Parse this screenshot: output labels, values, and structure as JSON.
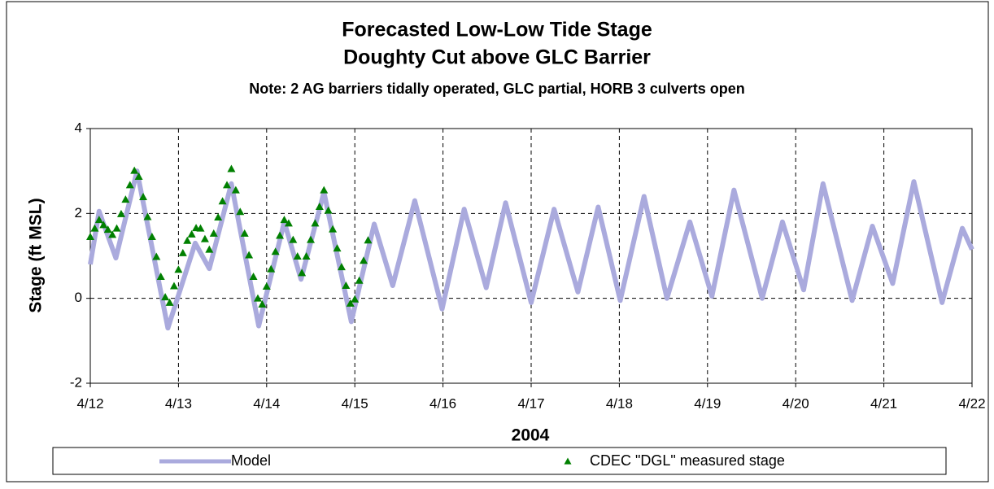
{
  "chart_data": {
    "type": "line",
    "title": "Forecasted Low-Low Tide Stage",
    "subtitle": "Doughty Cut above GLC Barrier",
    "note": "Note: 2 AG barriers tidally operated, GLC partial, HORB 3 culverts open",
    "x_label": "2004",
    "y_label": "Stage (ft MSL)",
    "xlim": [
      12,
      22
    ],
    "xticks": [
      {
        "value": 12,
        "label": "4/12"
      },
      {
        "value": 13,
        "label": "4/13"
      },
      {
        "value": 14,
        "label": "4/14"
      },
      {
        "value": 15,
        "label": "4/15"
      },
      {
        "value": 16,
        "label": "4/16"
      },
      {
        "value": 17,
        "label": "4/17"
      },
      {
        "value": 18,
        "label": "4/18"
      },
      {
        "value": 19,
        "label": "4/19"
      },
      {
        "value": 20,
        "label": "4/20"
      },
      {
        "value": 21,
        "label": "4/21"
      },
      {
        "value": 22,
        "label": "4/22"
      }
    ],
    "ylim": [
      -2,
      4
    ],
    "yticks": [
      -2,
      0,
      2,
      4
    ],
    "grid": true,
    "legend": "bottom",
    "series": [
      {
        "name": "Model",
        "style": "line",
        "color": "#aaaadd",
        "x": [
          12.0,
          12.1,
          12.29,
          12.53,
          12.88,
          13.19,
          13.35,
          13.6,
          13.91,
          14.2,
          14.39,
          14.65,
          14.96,
          15.22,
          15.43,
          15.68,
          15.99,
          16.24,
          16.49,
          16.71,
          17.0,
          17.26,
          17.53,
          17.76,
          18.01,
          18.28,
          18.54,
          18.8,
          19.05,
          19.3,
          19.62,
          19.85,
          20.09,
          20.31,
          20.64,
          20.87,
          21.1,
          21.34,
          21.66,
          21.89,
          22.0
        ],
        "values": [
          0.8,
          2.05,
          0.95,
          3.0,
          -0.7,
          1.3,
          0.7,
          2.7,
          -0.65,
          1.8,
          0.45,
          2.5,
          -0.55,
          1.75,
          0.3,
          2.3,
          -0.25,
          2.1,
          0.25,
          2.25,
          -0.1,
          2.1,
          0.15,
          2.15,
          -0.05,
          2.4,
          0.0,
          1.8,
          0.05,
          2.55,
          0.0,
          1.8,
          0.2,
          2.7,
          -0.05,
          1.7,
          0.35,
          2.75,
          -0.1,
          1.65,
          1.15
        ]
      },
      {
        "name": "CDEC \"DGL\" measured stage",
        "style": "marker",
        "color": "#008000",
        "x": [
          12.0,
          12.05,
          12.1,
          12.15,
          12.2,
          12.25,
          12.3,
          12.35,
          12.4,
          12.45,
          12.5,
          12.55,
          12.6,
          12.65,
          12.7,
          12.75,
          12.8,
          12.85,
          12.9,
          12.95,
          13.0,
          13.05,
          13.1,
          13.15,
          13.2,
          13.25,
          13.3,
          13.35,
          13.4,
          13.45,
          13.5,
          13.55,
          13.6,
          13.65,
          13.7,
          13.75,
          13.8,
          13.85,
          13.9,
          13.95,
          14.0,
          14.05,
          14.1,
          14.15,
          14.2,
          14.25,
          14.3,
          14.35,
          14.4,
          14.45,
          14.5,
          14.55,
          14.6,
          14.65,
          14.7,
          14.75,
          14.8,
          14.85,
          14.9,
          14.95,
          15.0,
          15.05,
          15.1,
          15.15
        ],
        "values": [
          1.45,
          1.65,
          1.85,
          1.73,
          1.62,
          1.5,
          1.65,
          1.99,
          2.33,
          2.67,
          3.01,
          2.87,
          2.39,
          1.92,
          1.45,
          0.98,
          0.51,
          0.03,
          -0.1,
          0.29,
          0.68,
          1.07,
          1.36,
          1.51,
          1.66,
          1.65,
          1.4,
          1.15,
          1.53,
          1.91,
          2.29,
          2.67,
          3.05,
          2.55,
          2.04,
          1.53,
          1.02,
          0.51,
          0.0,
          -0.14,
          0.28,
          0.69,
          1.1,
          1.48,
          1.85,
          1.77,
          1.38,
          0.99,
          0.6,
          0.99,
          1.38,
          1.77,
          2.16,
          2.55,
          2.07,
          1.63,
          1.18,
          0.74,
          0.3,
          -0.12,
          -0.02,
          0.42,
          0.89,
          1.37
        ]
      }
    ]
  }
}
